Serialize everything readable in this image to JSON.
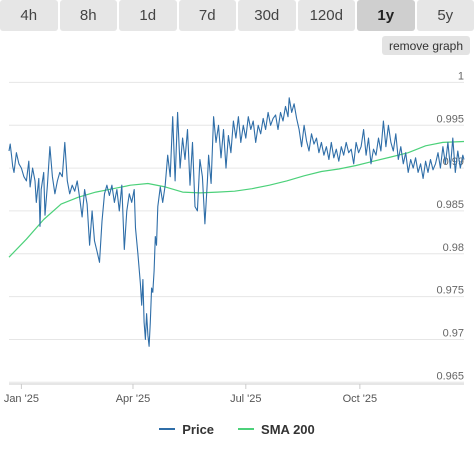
{
  "range_tabs": [
    {
      "label": "4h",
      "active": false
    },
    {
      "label": "8h",
      "active": false
    },
    {
      "label": "1d",
      "active": false
    },
    {
      "label": "7d",
      "active": false
    },
    {
      "label": "30d",
      "active": false
    },
    {
      "label": "120d",
      "active": false
    },
    {
      "label": "1y",
      "active": true
    },
    {
      "label": "5y",
      "active": false
    }
  ],
  "remove_graph_label": "remove graph",
  "chart_data": {
    "type": "line",
    "title": "",
    "xlabel": "",
    "ylabel": "",
    "x_range": [
      "2024-12-22",
      "2025-12-24"
    ],
    "ylim": [
      0.9648,
      1.0025
    ],
    "y_ticks": [
      {
        "value": 1,
        "label": "1"
      },
      {
        "value": 0.995,
        "label": "0.995"
      },
      {
        "value": 0.99,
        "label": "0.99"
      },
      {
        "value": 0.985,
        "label": "0.985"
      },
      {
        "value": 0.98,
        "label": "0.98"
      },
      {
        "value": 0.975,
        "label": "0.975"
      },
      {
        "value": 0.97,
        "label": "0.97"
      },
      {
        "value": 0.965,
        "label": "0.965"
      }
    ],
    "x_ticks": [
      {
        "date": "2025-01-01",
        "label": "Jan '25"
      },
      {
        "date": "2025-04-01",
        "label": "Apr '25"
      },
      {
        "date": "2025-07-01",
        "label": "Jul '25"
      },
      {
        "date": "2025-10-01",
        "label": "Oct '25"
      }
    ],
    "grid": "horizontal",
    "legend_position": "bottom",
    "series": [
      {
        "name": "Price",
        "color": "#2f6ea8",
        "points": [
          [
            "2024-12-22",
            0.992
          ],
          [
            "2024-12-23",
            0.9928
          ],
          [
            "2024-12-24",
            0.9915
          ],
          [
            "2024-12-25",
            0.9902
          ],
          [
            "2024-12-26",
            0.9895
          ],
          [
            "2024-12-28",
            0.9918
          ],
          [
            "2024-12-30",
            0.9905
          ],
          [
            "2025-01-01",
            0.99
          ],
          [
            "2025-01-03",
            0.989
          ],
          [
            "2025-01-05",
            0.9885
          ],
          [
            "2025-01-07",
            0.9908
          ],
          [
            "2025-01-08",
            0.9878
          ],
          [
            "2025-01-10",
            0.99
          ],
          [
            "2025-01-12",
            0.9885
          ],
          [
            "2025-01-13",
            0.986
          ],
          [
            "2025-01-15",
            0.9888
          ],
          [
            "2025-01-16",
            0.9832
          ],
          [
            "2025-01-17",
            0.9875
          ],
          [
            "2025-01-19",
            0.9895
          ],
          [
            "2025-01-20",
            0.9845
          ],
          [
            "2025-01-22",
            0.988
          ],
          [
            "2025-01-24",
            0.9925
          ],
          [
            "2025-01-26",
            0.989
          ],
          [
            "2025-01-28",
            0.987
          ],
          [
            "2025-01-30",
            0.9885
          ],
          [
            "2025-02-01",
            0.9895
          ],
          [
            "2025-02-03",
            0.989
          ],
          [
            "2025-02-05",
            0.993
          ],
          [
            "2025-02-07",
            0.9885
          ],
          [
            "2025-02-09",
            0.987
          ],
          [
            "2025-02-11",
            0.988
          ],
          [
            "2025-02-13",
            0.9873
          ],
          [
            "2025-02-15",
            0.9885
          ],
          [
            "2025-02-17",
            0.9865
          ],
          [
            "2025-02-19",
            0.9843
          ],
          [
            "2025-02-21",
            0.9875
          ],
          [
            "2025-02-23",
            0.9858
          ],
          [
            "2025-02-25",
            0.981
          ],
          [
            "2025-02-27",
            0.985
          ],
          [
            "2025-03-01",
            0.9815
          ],
          [
            "2025-03-03",
            0.9803
          ],
          [
            "2025-03-05",
            0.979
          ],
          [
            "2025-03-07",
            0.9838
          ],
          [
            "2025-03-09",
            0.987
          ],
          [
            "2025-03-11",
            0.988
          ],
          [
            "2025-03-13",
            0.9868
          ],
          [
            "2025-03-15",
            0.988
          ],
          [
            "2025-03-17",
            0.986
          ],
          [
            "2025-03-19",
            0.9875
          ],
          [
            "2025-03-21",
            0.985
          ],
          [
            "2025-03-23",
            0.988
          ],
          [
            "2025-03-25",
            0.9805
          ],
          [
            "2025-03-27",
            0.985
          ],
          [
            "2025-03-29",
            0.987
          ],
          [
            "2025-03-31",
            0.986
          ],
          [
            "2025-04-02",
            0.9875
          ],
          [
            "2025-04-03",
            0.983
          ],
          [
            "2025-04-05",
            0.98
          ],
          [
            "2025-04-07",
            0.9765
          ],
          [
            "2025-04-08",
            0.974
          ],
          [
            "2025-04-09",
            0.977
          ],
          [
            "2025-04-10",
            0.972
          ],
          [
            "2025-04-11",
            0.97
          ],
          [
            "2025-04-12",
            0.973
          ],
          [
            "2025-04-13",
            0.9705
          ],
          [
            "2025-04-14",
            0.9692
          ],
          [
            "2025-04-15",
            0.972
          ],
          [
            "2025-04-16",
            0.976
          ],
          [
            "2025-04-17",
            0.9755
          ],
          [
            "2025-04-18",
            0.978
          ],
          [
            "2025-04-19",
            0.982
          ],
          [
            "2025-04-20",
            0.981
          ],
          [
            "2025-04-21",
            0.9855
          ],
          [
            "2025-04-23",
            0.9878
          ],
          [
            "2025-04-25",
            0.986
          ],
          [
            "2025-04-27",
            0.988
          ],
          [
            "2025-04-29",
            0.9915
          ],
          [
            "2025-05-01",
            0.989
          ],
          [
            "2025-05-03",
            0.996
          ],
          [
            "2025-05-05",
            0.9885
          ],
          [
            "2025-05-07",
            0.9965
          ],
          [
            "2025-05-09",
            0.99
          ],
          [
            "2025-05-11",
            0.9935
          ],
          [
            "2025-05-13",
            0.991
          ],
          [
            "2025-05-15",
            0.9945
          ],
          [
            "2025-05-17",
            0.988
          ],
          [
            "2025-05-19",
            0.993
          ],
          [
            "2025-05-21",
            0.9855
          ],
          [
            "2025-05-23",
            0.985
          ],
          [
            "2025-05-25",
            0.991
          ],
          [
            "2025-05-27",
            0.989
          ],
          [
            "2025-05-29",
            0.9835
          ],
          [
            "2025-05-31",
            0.9885
          ],
          [
            "2025-06-01",
            0.9915
          ],
          [
            "2025-06-03",
            0.9882
          ],
          [
            "2025-06-05",
            0.996
          ],
          [
            "2025-06-07",
            0.993
          ],
          [
            "2025-06-09",
            0.995
          ],
          [
            "2025-06-11",
            0.9912
          ],
          [
            "2025-06-13",
            0.9945
          ],
          [
            "2025-06-15",
            0.99
          ],
          [
            "2025-06-17",
            0.9938
          ],
          [
            "2025-06-19",
            0.9918
          ],
          [
            "2025-06-21",
            0.9955
          ],
          [
            "2025-06-23",
            0.9935
          ],
          [
            "2025-06-25",
            0.996
          ],
          [
            "2025-06-27",
            0.993
          ],
          [
            "2025-06-29",
            0.995
          ],
          [
            "2025-07-01",
            0.9935
          ],
          [
            "2025-07-03",
            0.996
          ],
          [
            "2025-07-05",
            0.9945
          ],
          [
            "2025-07-07",
            0.9955
          ],
          [
            "2025-07-09",
            0.993
          ],
          [
            "2025-07-11",
            0.995
          ],
          [
            "2025-07-13",
            0.994
          ],
          [
            "2025-07-15",
            0.9958
          ],
          [
            "2025-07-17",
            0.9945
          ],
          [
            "2025-07-19",
            0.9965
          ],
          [
            "2025-07-21",
            0.995
          ],
          [
            "2025-07-23",
            0.9958
          ],
          [
            "2025-07-25",
            0.9962
          ],
          [
            "2025-07-27",
            0.9945
          ],
          [
            "2025-07-29",
            0.9965
          ],
          [
            "2025-07-31",
            0.9955
          ],
          [
            "2025-08-02",
            0.9972
          ],
          [
            "2025-08-04",
            0.996
          ],
          [
            "2025-08-05",
            0.9982
          ],
          [
            "2025-08-07",
            0.9965
          ],
          [
            "2025-08-09",
            0.9975
          ],
          [
            "2025-08-11",
            0.9958
          ],
          [
            "2025-08-13",
            0.9945
          ],
          [
            "2025-08-15",
            0.9925
          ],
          [
            "2025-08-17",
            0.995
          ],
          [
            "2025-08-19",
            0.9932
          ],
          [
            "2025-08-21",
            0.992
          ],
          [
            "2025-08-23",
            0.994
          ],
          [
            "2025-08-25",
            0.9928
          ],
          [
            "2025-08-27",
            0.9935
          ],
          [
            "2025-08-29",
            0.9918
          ],
          [
            "2025-08-31",
            0.993
          ],
          [
            "2025-09-02",
            0.9915
          ],
          [
            "2025-09-04",
            0.9925
          ],
          [
            "2025-09-06",
            0.991
          ],
          [
            "2025-09-08",
            0.993
          ],
          [
            "2025-09-10",
            0.9912
          ],
          [
            "2025-09-12",
            0.9922
          ],
          [
            "2025-09-14",
            0.9908
          ],
          [
            "2025-09-16",
            0.9925
          ],
          [
            "2025-09-18",
            0.9915
          ],
          [
            "2025-09-20",
            0.993
          ],
          [
            "2025-09-22",
            0.9918
          ],
          [
            "2025-09-24",
            0.9922
          ],
          [
            "2025-09-26",
            0.9905
          ],
          [
            "2025-09-28",
            0.993
          ],
          [
            "2025-09-30",
            0.9918
          ],
          [
            "2025-10-02",
            0.9925
          ],
          [
            "2025-10-04",
            0.9945
          ],
          [
            "2025-10-06",
            0.9915
          ],
          [
            "2025-10-08",
            0.9935
          ],
          [
            "2025-10-10",
            0.9905
          ],
          [
            "2025-10-12",
            0.9922
          ],
          [
            "2025-10-14",
            0.9915
          ],
          [
            "2025-10-16",
            0.9935
          ],
          [
            "2025-10-18",
            0.992
          ],
          [
            "2025-10-20",
            0.9955
          ],
          [
            "2025-10-22",
            0.9925
          ],
          [
            "2025-10-24",
            0.995
          ],
          [
            "2025-10-26",
            0.993
          ],
          [
            "2025-10-28",
            0.992
          ],
          [
            "2025-10-30",
            0.994
          ],
          [
            "2025-11-01",
            0.991
          ],
          [
            "2025-11-03",
            0.9925
          ],
          [
            "2025-11-05",
            0.9905
          ],
          [
            "2025-11-07",
            0.9918
          ],
          [
            "2025-11-09",
            0.9895
          ],
          [
            "2025-11-11",
            0.991
          ],
          [
            "2025-11-13",
            0.99
          ],
          [
            "2025-11-15",
            0.9912
          ],
          [
            "2025-11-17",
            0.9895
          ],
          [
            "2025-11-19",
            0.9905
          ],
          [
            "2025-11-21",
            0.9888
          ],
          [
            "2025-11-23",
            0.9908
          ],
          [
            "2025-11-25",
            0.9895
          ],
          [
            "2025-11-27",
            0.991
          ],
          [
            "2025-11-29",
            0.9898
          ],
          [
            "2025-12-01",
            0.9905
          ],
          [
            "2025-12-03",
            0.9918
          ],
          [
            "2025-12-05",
            0.99
          ],
          [
            "2025-12-07",
            0.9925
          ],
          [
            "2025-12-09",
            0.9905
          ],
          [
            "2025-12-11",
            0.993
          ],
          [
            "2025-12-13",
            0.99
          ],
          [
            "2025-12-15",
            0.9935
          ],
          [
            "2025-12-17",
            0.9895
          ],
          [
            "2025-12-19",
            0.992
          ],
          [
            "2025-12-21",
            0.99
          ],
          [
            "2025-12-23",
            0.9915
          ],
          [
            "2025-12-24",
            0.991
          ]
        ]
      },
      {
        "name": "SMA 200",
        "color": "#4cd17a",
        "points": [
          [
            "2024-12-22",
            0.9796
          ],
          [
            "2025-01-05",
            0.9817
          ],
          [
            "2025-01-19",
            0.984
          ],
          [
            "2025-02-02",
            0.9858
          ],
          [
            "2025-02-16",
            0.9866
          ],
          [
            "2025-03-02",
            0.9872
          ],
          [
            "2025-03-16",
            0.9876
          ],
          [
            "2025-03-30",
            0.988
          ],
          [
            "2025-04-13",
            0.9882
          ],
          [
            "2025-04-27",
            0.9878
          ],
          [
            "2025-05-11",
            0.9872
          ],
          [
            "2025-05-25",
            0.9871
          ],
          [
            "2025-06-08",
            0.9872
          ],
          [
            "2025-06-22",
            0.9873
          ],
          [
            "2025-07-06",
            0.9876
          ],
          [
            "2025-07-20",
            0.988
          ],
          [
            "2025-08-03",
            0.9885
          ],
          [
            "2025-08-17",
            0.9891
          ],
          [
            "2025-08-31",
            0.9896
          ],
          [
            "2025-09-14",
            0.9899
          ],
          [
            "2025-09-28",
            0.9903
          ],
          [
            "2025-10-12",
            0.9908
          ],
          [
            "2025-10-26",
            0.9913
          ],
          [
            "2025-11-09",
            0.9918
          ],
          [
            "2025-11-23",
            0.9926
          ],
          [
            "2025-12-07",
            0.993
          ],
          [
            "2025-12-24",
            0.9931
          ]
        ]
      }
    ]
  }
}
